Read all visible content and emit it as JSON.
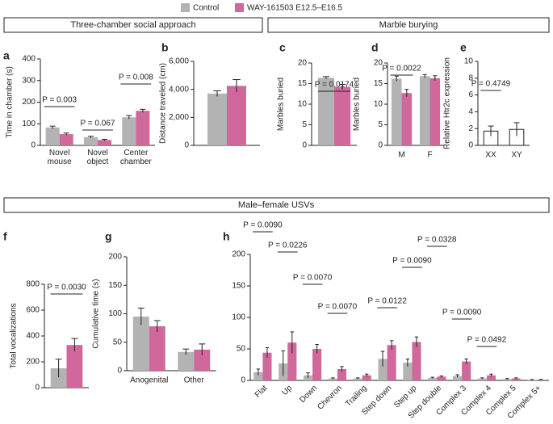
{
  "sections": [
    "Three-chamber social approach",
    "Marble burying",
    "Male–female USVs"
  ],
  "chart_data": [
    {
      "type": "bar",
      "panel": "a",
      "ylabel": "Time in chamber (s)",
      "categories": [
        "Novel mouse",
        "Novel object",
        "Center chamber"
      ],
      "series": [
        {
          "name": "Control",
          "color": "#b3b3b3",
          "values": [
            83,
            38,
            130
          ],
          "errors": [
            6,
            4,
            8
          ]
        },
        {
          "name": "WAY-161503 E12.5–E16.5",
          "color": "#d0689b",
          "values": [
            52,
            25,
            160
          ],
          "errors": [
            5,
            3,
            7
          ]
        }
      ],
      "ylim": [
        0,
        400
      ],
      "yticks": [
        0,
        100,
        200,
        300,
        400
      ],
      "annotations": [
        {
          "text": "P = 0.003",
          "category": "Novel mouse"
        },
        {
          "text": "P = 0.067",
          "category": "Novel object"
        },
        {
          "text": "P = 0.008",
          "category": "Center chamber"
        }
      ]
    },
    {
      "type": "bar",
      "panel": "b",
      "ylabel": "Distance traveled (cm)",
      "categories": [
        null
      ],
      "series": [
        {
          "name": "Control",
          "color": "#b3b3b3",
          "values": [
            3700
          ],
          "errors": [
            200
          ]
        },
        {
          "name": "WAY-161503 E12.5–E16.5",
          "color": "#d0689b",
          "values": [
            4250
          ],
          "errors": [
            450
          ]
        }
      ],
      "ylim": [
        0,
        6000
      ],
      "yticks": [
        0,
        {
          "value": 2000,
          "label": "2,000"
        },
        {
          "value": 4000,
          "label": "4,000"
        },
        {
          "value": 6000,
          "label": "6,000"
        }
      ],
      "annotations": []
    },
    {
      "type": "bar",
      "panel": "c",
      "ylabel": "Marbles buried",
      "categories": [
        null
      ],
      "series": [
        {
          "name": "Control",
          "color": "#b3b3b3",
          "values": [
            16.4
          ],
          "errors": [
            0.3
          ]
        },
        {
          "name": "WAY-161503 E12.5–E16.5",
          "color": "#d0689b",
          "values": [
            14.2
          ],
          "errors": [
            0.6
          ]
        }
      ],
      "ylim": [
        0,
        20
      ],
      "yticks": [
        0,
        5,
        10,
        15,
        20
      ],
      "annotations": [
        {
          "text": "P = 0.0174"
        }
      ]
    },
    {
      "type": "bar",
      "panel": "d",
      "ylabel": "Marbles buried",
      "categories": [
        "M",
        "F"
      ],
      "series": [
        {
          "name": "Control",
          "color": "#b3b3b3",
          "values": [
            16.2,
            16.8
          ],
          "errors": [
            0.6,
            0.4
          ]
        },
        {
          "name": "WAY-161503 E12.5–E16.5",
          "color": "#d0689b",
          "values": [
            12.7,
            16.3
          ],
          "errors": [
            0.9,
            0.6
          ]
        }
      ],
      "ylim": [
        0,
        20
      ],
      "yticks": [
        0,
        5,
        10,
        15,
        20
      ],
      "annotations": [
        {
          "text": "P = 0.0022",
          "category": "M"
        }
      ]
    },
    {
      "type": "bar",
      "panel": "e",
      "ylabel": "Relative Htr2c expression",
      "categories": [
        "XX",
        "XY"
      ],
      "values": [
        1.7,
        1.9
      ],
      "errors": [
        0.6,
        0.8
      ],
      "color": "#ffffff",
      "ylim": [
        0,
        10
      ],
      "yticks": [
        0,
        2,
        4,
        6,
        8,
        10
      ],
      "annotations": [
        {
          "text": "P = 0.4749"
        }
      ]
    },
    {
      "type": "bar",
      "panel": "f",
      "ylabel": "Total vocalizations",
      "categories": [
        null
      ],
      "series": [
        {
          "name": "Control",
          "color": "#b3b3b3",
          "values": [
            150
          ],
          "errors": [
            70
          ]
        },
        {
          "name": "WAY-161503 E12.5–E16.5",
          "color": "#d0689b",
          "values": [
            330
          ],
          "errors": [
            50
          ]
        }
      ],
      "ylim": [
        0,
        800
      ],
      "yticks": [
        0,
        200,
        400,
        600,
        800
      ],
      "annotations": [
        {
          "text": "P = 0.0030"
        }
      ]
    },
    {
      "type": "bar",
      "panel": "g",
      "ylabel": "Cumulative time (s)",
      "categories": [
        "Anogenital",
        "Other"
      ],
      "series": [
        {
          "name": "Control",
          "color": "#b3b3b3",
          "values": [
            95,
            33
          ],
          "errors": [
            15,
            5
          ]
        },
        {
          "name": "WAY-161503 E12.5–E16.5",
          "color": "#d0689b",
          "values": [
            78,
            37
          ],
          "errors": [
            10,
            10
          ]
        }
      ],
      "ylim": [
        0,
        200
      ],
      "yticks": [
        0,
        50,
        100,
        150,
        200
      ],
      "annotations": []
    },
    {
      "type": "bar",
      "panel": "h",
      "categories": [
        "Flat",
        "Up",
        "Down",
        "Chevron",
        "Trailing",
        "Step down",
        "Step up",
        "Step double",
        "Complex 3",
        "Complex 4",
        "Complex 5",
        "Complex 5+"
      ],
      "series": [
        {
          "name": "Control",
          "color": "#b3b3b3",
          "values": [
            13,
            27,
            8,
            3,
            3,
            34,
            28,
            4,
            7,
            3,
            2,
            1
          ],
          "errors": [
            5,
            20,
            4,
            1,
            1,
            12,
            6,
            1,
            2,
            1,
            1,
            0.5
          ]
        },
        {
          "name": "WAY-161503 E12.5–E16.5",
          "color": "#d0689b",
          "values": [
            44,
            60,
            50,
            18,
            8,
            56,
            61,
            6,
            30,
            8,
            3,
            1
          ],
          "errors": [
            8,
            17,
            7,
            4,
            2,
            7,
            8,
            1,
            4,
            2,
            1,
            0.5
          ]
        }
      ],
      "ylim": [
        0,
        200
      ],
      "yticks": [
        0,
        50,
        100,
        150,
        200
      ],
      "annotations": [
        {
          "text": "P = 0.0090",
          "category": "Flat"
        },
        {
          "text": "P = 0.0226",
          "category": "Up"
        },
        {
          "text": "P = 0.0070",
          "category": "Down"
        },
        {
          "text": "P = 0.0070",
          "category": "Chevron"
        },
        {
          "text": "P = 0.0122",
          "category": "Step down"
        },
        {
          "text": "P = 0.0090",
          "category": "Step up"
        },
        {
          "text": "P = 0.0328",
          "category": "Step double"
        },
        {
          "text": "P = 0.0090",
          "category": "Complex 3"
        },
        {
          "text": "P = 0.0492",
          "category": "Complex 4"
        }
      ]
    }
  ]
}
